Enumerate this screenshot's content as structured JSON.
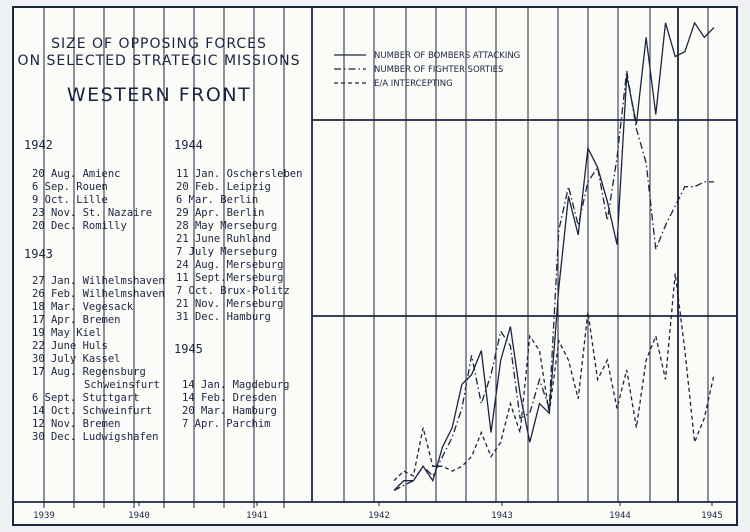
{
  "chart_data": {
    "type": "line",
    "title_lines": [
      "SIZE OF OPPOSING FORCES",
      "ON SELECTED STRATEGIC MISSIONS"
    ],
    "subtitle": "WESTERN FRONT",
    "legend_position": "top-right",
    "grid": true,
    "x_ticks": [
      "1939",
      "1940",
      "1941",
      "1942",
      "1943",
      "1944",
      "1945"
    ],
    "missions": [
      {
        "year": "1942",
        "items": [
          "20 Aug. Amienc",
          "6 Sep. Rouen",
          "9 Oct. Lille",
          "23 Nov. St. Nazaire",
          "20 Dec. Romilly"
        ]
      },
      {
        "year": "1943",
        "items": [
          "27 Jan. Wilhelmshaven",
          "26 Feb. Wilhelmshaven",
          "18 Mar. Vegesack",
          "17 Apr. Bremen",
          "19 May Kiel",
          "22 June Huls",
          "30 July Kassel",
          "17 Aug. Regensburg",
          "Schweinsfurt",
          "6 Sept. Stuttgart",
          "14 Oct. Schweinfurt",
          "12 Nov. Bremen",
          "30 Dec. Ludwigshafen"
        ]
      },
      {
        "year": "1944",
        "items": [
          "11 Jan. Oschersleben",
          "20 Feb. Leipzig",
          "6 Mar. Berlin",
          "29 Apr. Berlin",
          "28 May Merseburg",
          "21 June Ruhland",
          "7 July Merseburg",
          "24 Aug. Merseburg",
          "11 Sept.Merseburg",
          "7 Oct. Brux-Politz",
          "21 Nov. Merseburg",
          "31 Dec. Hamburg"
        ]
      },
      {
        "year": "1945",
        "items": [
          "14 Jan. Magdeburg",
          "14 Feb. Dresden",
          "20 Mar. Hamburg",
          "7 Apr. Parchim"
        ]
      }
    ],
    "x_mission_index": [
      1,
      2,
      3,
      4,
      5,
      6,
      7,
      8,
      9,
      10,
      11,
      12,
      13,
      14,
      15,
      16,
      17,
      18,
      19,
      20,
      21,
      22,
      23,
      24,
      25,
      26,
      27,
      28,
      29,
      30,
      31,
      32,
      33,
      34
    ],
    "y_range": [
      0,
      1
    ],
    "series": [
      {
        "name": "NUMBER OF BOMBERS ATTACKING",
        "dash": "solid",
        "values": [
          0.02,
          0.04,
          0.04,
          0.07,
          0.04,
          0.11,
          0.15,
          0.24,
          0.26,
          0.31,
          0.14,
          0.29,
          0.36,
          0.22,
          0.12,
          0.2,
          0.18,
          0.44,
          0.63,
          0.55,
          0.73,
          0.69,
          0.62,
          0.53,
          0.88,
          0.78,
          0.96,
          0.8,
          0.99,
          0.92,
          0.93,
          0.99,
          0.96,
          0.98
        ]
      },
      {
        "name": "NUMBER OF FIGHTER SORTIES",
        "dash": "dashdot",
        "values": [
          0.02,
          0.03,
          0.04,
          0.07,
          0.05,
          0.09,
          0.13,
          0.19,
          0.3,
          0.2,
          0.26,
          0.35,
          0.32,
          0.17,
          0.18,
          0.25,
          0.19,
          0.56,
          0.65,
          0.57,
          0.66,
          0.69,
          0.58,
          0.71,
          0.89,
          0.77,
          0.7,
          0.52,
          0.57,
          0.61,
          0.65,
          0.65,
          0.66,
          0.66
        ]
      },
      {
        "name": "E/A INTERCEPTING",
        "dash": "dashed",
        "values": [
          0.04,
          0.06,
          0.05,
          0.15,
          0.07,
          0.07,
          0.06,
          0.07,
          0.09,
          0.14,
          0.09,
          0.12,
          0.2,
          0.14,
          0.34,
          0.31,
          0.18,
          0.33,
          0.29,
          0.21,
          0.39,
          0.25,
          0.29,
          0.19,
          0.27,
          0.15,
          0.29,
          0.34,
          0.25,
          0.47,
          0.31,
          0.12,
          0.17,
          0.26
        ]
      }
    ]
  }
}
